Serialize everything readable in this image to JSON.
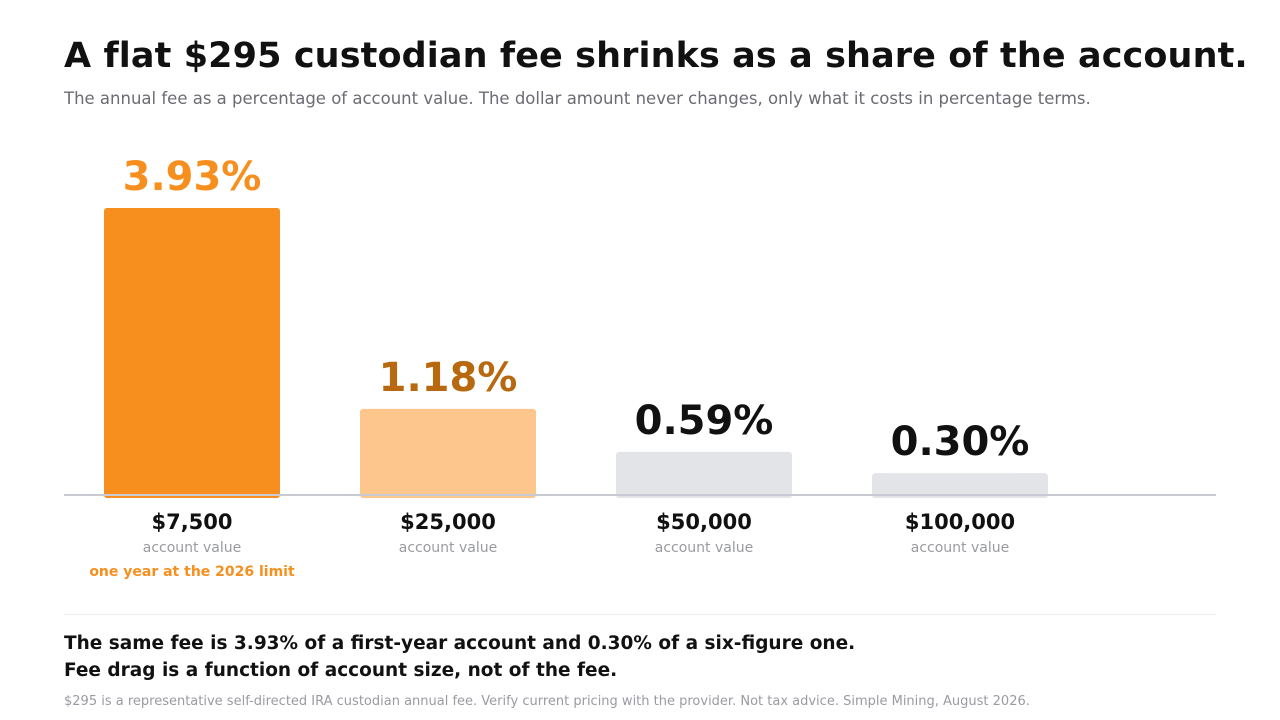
{
  "header": {
    "title": "A flat $295 custodian fee shrinks as a share of the account.",
    "subtitle": "The annual fee as a percentage of account value. The dollar amount never changes, only what it costs in percentage terms."
  },
  "chart_data": {
    "type": "bar",
    "title": "",
    "xlabel": "",
    "ylabel": "",
    "ylim": [
      0,
      4.2
    ],
    "grid": false,
    "legend": "none",
    "categories": [
      "$7,500",
      "$25,000",
      "$50,000",
      "$100,000"
    ],
    "category_sublabel": "account value",
    "values": [
      3.93,
      1.18,
      0.59,
      0.3
    ],
    "data_labels": [
      "3.93%",
      "1.18%",
      "0.59%",
      "0.30%"
    ],
    "bar_colors": [
      "#f78f1e",
      "#fcc68c",
      "#e3e4e7",
      "#e3e4e7"
    ],
    "label_colors": [
      "#f78f1e",
      "#b8680f",
      "#111111",
      "#111111"
    ],
    "annotation": {
      "category_index": 0,
      "text": "one year at the 2026 limit",
      "color": "#f78f1e"
    }
  },
  "takeaway": {
    "line1": "The same fee is 3.93% of a first-year account and 0.30% of a six-figure one.",
    "line2": "Fee drag is a function of account size, not of the fee."
  },
  "footnote": "$295 is a representative self-directed IRA custodian annual fee. Verify current pricing with the provider. Not tax advice. Simple Mining, August 2026."
}
